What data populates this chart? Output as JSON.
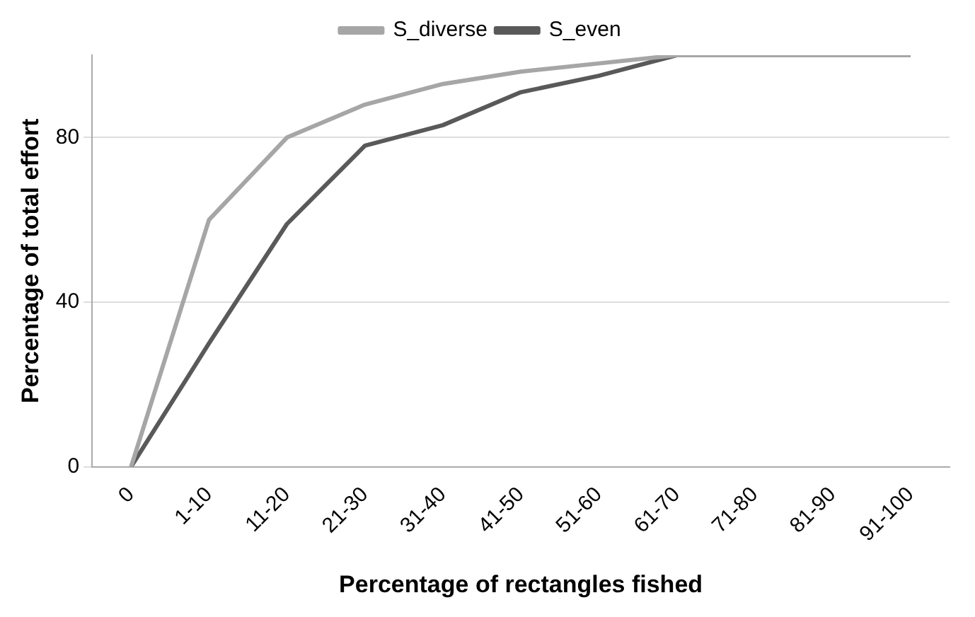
{
  "chart_data": {
    "type": "line",
    "xlabel": "Percentage of rectangles fished",
    "ylabel": "Percentage of total effort",
    "categories": [
      "0",
      "1-10",
      "11-20",
      "21-30",
      "31-40",
      "41-50",
      "51-60",
      "61-70",
      "71-80",
      "81-90",
      "91-100"
    ],
    "series": [
      {
        "name": "S_diverse",
        "color": "#a6a6a6",
        "values": [
          0,
          60,
          80,
          88,
          93,
          96,
          98,
          100,
          100,
          100,
          100
        ]
      },
      {
        "name": "S_even",
        "color": "#595959",
        "values": [
          0,
          30,
          59,
          78,
          83,
          91,
          95,
          100,
          100,
          100,
          100
        ]
      }
    ],
    "ylim": [
      0,
      100
    ],
    "yticks": [
      0,
      40,
      80
    ],
    "grid": "y",
    "legend": "top",
    "marker": "none",
    "line_style": "solid"
  }
}
